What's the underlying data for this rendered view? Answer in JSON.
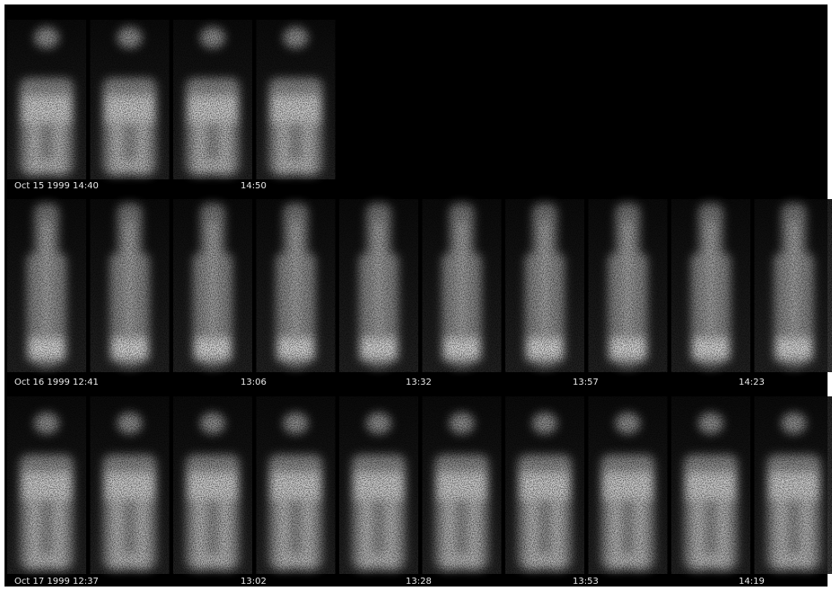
{
  "rows": [
    {
      "labels": [
        "Oct 15 1999 14:40",
        "14:50"
      ]
    },
    {
      "labels": [
        "Oct 16 1999 12:41",
        "13:06",
        "13:32",
        "13:57",
        "14:23"
      ]
    },
    {
      "labels": [
        "Oct 17 1999 12:37",
        "13:02",
        "13:28",
        "13:53",
        "14:19"
      ]
    }
  ]
}
